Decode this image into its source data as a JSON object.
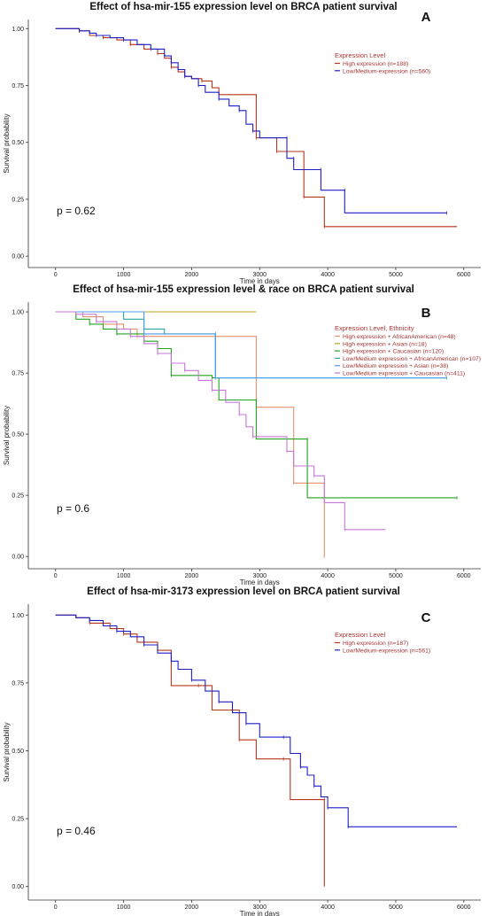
{
  "chart_data": [
    {
      "type": "line",
      "panel_letter": "A",
      "title": "Effect of hsa-mir-155 expression level on BRCA patient survival",
      "xlabel": "Time in days",
      "ylabel": "Survival probability",
      "xlim": [
        -400,
        6250
      ],
      "ylim": [
        -0.05,
        1.04
      ],
      "xticks": [
        0,
        1000,
        2000,
        3000,
        4000,
        5000,
        6000
      ],
      "yticks": [
        "0.00",
        "0.25",
        "0.50",
        "0.75",
        "1.00"
      ],
      "grid": false,
      "pvalue": "p = 0.62",
      "legend_title": "Expression Level",
      "legend_position": "top-right",
      "series": [
        {
          "name": "High expression (n=188)",
          "color": "#b5361c",
          "points": [
            [
              0,
              1.0
            ],
            [
              250,
              1.0
            ],
            [
              350,
              0.99
            ],
            [
              500,
              0.97
            ],
            [
              700,
              0.96
            ],
            [
              900,
              0.95
            ],
            [
              1100,
              0.93
            ],
            [
              1300,
              0.91
            ],
            [
              1500,
              0.89
            ],
            [
              1600,
              0.87
            ],
            [
              1700,
              0.83
            ],
            [
              1800,
              0.81
            ],
            [
              1900,
              0.79
            ],
            [
              2000,
              0.78
            ],
            [
              2150,
              0.77
            ],
            [
              2300,
              0.74
            ],
            [
              2400,
              0.71
            ],
            [
              2950,
              0.71
            ],
            [
              2950,
              0.52
            ],
            [
              3250,
              0.52
            ],
            [
              3250,
              0.46
            ],
            [
              3650,
              0.46
            ],
            [
              3650,
              0.26
            ],
            [
              3950,
              0.26
            ],
            [
              3950,
              0.13
            ],
            [
              5900,
              0.13
            ]
          ]
        },
        {
          "name": "Low/Medium-expression (n=560)",
          "color": "#1f1fc9",
          "points": [
            [
              0,
              1.0
            ],
            [
              200,
              1.0
            ],
            [
              350,
              0.99
            ],
            [
              500,
              0.98
            ],
            [
              600,
              0.97
            ],
            [
              800,
              0.96
            ],
            [
              1000,
              0.95
            ],
            [
              1200,
              0.93
            ],
            [
              1400,
              0.91
            ],
            [
              1600,
              0.88
            ],
            [
              1700,
              0.85
            ],
            [
              1800,
              0.82
            ],
            [
              1900,
              0.79
            ],
            [
              2000,
              0.78
            ],
            [
              2100,
              0.75
            ],
            [
              2200,
              0.72
            ],
            [
              2400,
              0.69
            ],
            [
              2550,
              0.66
            ],
            [
              2700,
              0.64
            ],
            [
              2800,
              0.58
            ],
            [
              2900,
              0.55
            ],
            [
              3000,
              0.52
            ],
            [
              3400,
              0.52
            ],
            [
              3400,
              0.43
            ],
            [
              3500,
              0.43
            ],
            [
              3500,
              0.38
            ],
            [
              3900,
              0.38
            ],
            [
              3900,
              0.29
            ],
            [
              4250,
              0.29
            ],
            [
              4250,
              0.19
            ],
            [
              5750,
              0.19
            ]
          ]
        }
      ]
    },
    {
      "type": "line",
      "panel_letter": "B",
      "title": "Effect of hsa-mir-155 expression level & race on BRCA patient survival",
      "xlabel": "Time in days",
      "ylabel": "Survival probability",
      "xlim": [
        -400,
        6250
      ],
      "ylim": [
        -0.05,
        1.04
      ],
      "xticks": [
        0,
        1000,
        2000,
        3000,
        4000,
        5000,
        6000
      ],
      "yticks": [
        "0.00",
        "0.25",
        "0.50",
        "0.75",
        "1.00"
      ],
      "grid": false,
      "pvalue": "p = 0.6",
      "legend_title": "Expression Level, Ethnicity",
      "legend_position": "top-right",
      "series": [
        {
          "name": "High expression + AfricanAmerican (n=48)",
          "color": "#e0916f",
          "points": [
            [
              0,
              1.0
            ],
            [
              400,
              0.98
            ],
            [
              700,
              0.95
            ],
            [
              1000,
              0.93
            ],
            [
              1200,
              0.9
            ],
            [
              2950,
              0.9
            ],
            [
              2950,
              0.61
            ],
            [
              3500,
              0.61
            ],
            [
              3500,
              0.3
            ],
            [
              3950,
              0.3
            ],
            [
              3950,
              0.0
            ]
          ]
        },
        {
          "name": "High expression + Asian (n=18)",
          "color": "#b9a01e",
          "points": [
            [
              0,
              1.0
            ],
            [
              2950,
              1.0
            ]
          ]
        },
        {
          "name": "High expression + Caucasian (n=120)",
          "color": "#22a322",
          "points": [
            [
              0,
              1.0
            ],
            [
              300,
              0.97
            ],
            [
              500,
              0.95
            ],
            [
              700,
              0.93
            ],
            [
              900,
              0.91
            ],
            [
              1100,
              0.91
            ],
            [
              1300,
              0.88
            ],
            [
              1500,
              0.85
            ],
            [
              1700,
              0.74
            ],
            [
              2000,
              0.74
            ],
            [
              2300,
              0.73
            ],
            [
              2400,
              0.64
            ],
            [
              2950,
              0.64
            ],
            [
              2950,
              0.48
            ],
            [
              3700,
              0.48
            ],
            [
              3700,
              0.24
            ],
            [
              5900,
              0.24
            ]
          ]
        },
        {
          "name": "Low/Medium expression + AfricanAmerican (n=107)",
          "color": "#2aa7a7",
          "points": [
            [
              0,
              1.0
            ],
            [
              1000,
              0.97
            ],
            [
              1300,
              0.93
            ],
            [
              1600,
              0.91
            ],
            [
              2350,
              0.91
            ],
            [
              2350,
              0.73
            ],
            [
              5750,
              0.73
            ]
          ]
        },
        {
          "name": "Low/Medium expression + Asian (n=38)",
          "color": "#4a9bf0",
          "points": [
            [
              0,
              1.0
            ],
            [
              1300,
              1.0
            ],
            [
              1300,
              0.91
            ],
            [
              2350,
              0.91
            ],
            [
              2350,
              0.73
            ],
            [
              5750,
              0.73
            ]
          ]
        },
        {
          "name": "Low/Medium expression + Caucasian (n=411)",
          "color": "#c577d6",
          "points": [
            [
              0,
              1.0
            ],
            [
              300,
              0.99
            ],
            [
              600,
              0.96
            ],
            [
              900,
              0.93
            ],
            [
              1100,
              0.9
            ],
            [
              1300,
              0.87
            ],
            [
              1500,
              0.83
            ],
            [
              1700,
              0.79
            ],
            [
              1900,
              0.76
            ],
            [
              2100,
              0.72
            ],
            [
              2300,
              0.68
            ],
            [
              2500,
              0.63
            ],
            [
              2700,
              0.58
            ],
            [
              2800,
              0.53
            ],
            [
              2900,
              0.49
            ],
            [
              3300,
              0.49
            ],
            [
              3400,
              0.43
            ],
            [
              3500,
              0.37
            ],
            [
              3800,
              0.33
            ],
            [
              3950,
              0.22
            ],
            [
              4250,
              0.11
            ],
            [
              4850,
              0.11
            ]
          ]
        }
      ]
    },
    {
      "type": "line",
      "panel_letter": "C",
      "title": "Effect of hsa-mir-3173 expression level on BRCA patient survival",
      "xlabel": "Time in days",
      "ylabel": "Survival probability",
      "xlim": [
        -400,
        6250
      ],
      "ylim": [
        -0.05,
        1.04
      ],
      "xticks": [
        0,
        1000,
        2000,
        3000,
        4000,
        5000,
        6000
      ],
      "yticks": [
        "0.00",
        "0.25",
        "0.50",
        "0.75",
        "1.00"
      ],
      "grid": false,
      "pvalue": "p = 0.46",
      "legend_title": "Expression Level",
      "legend_position": "top-right",
      "series": [
        {
          "name": "High expression (n=187)",
          "color": "#b5361c",
          "points": [
            [
              0,
              1.0
            ],
            [
              300,
              0.99
            ],
            [
              500,
              0.97
            ],
            [
              800,
              0.95
            ],
            [
              1000,
              0.93
            ],
            [
              1200,
              0.9
            ],
            [
              1500,
              0.87
            ],
            [
              1700,
              0.74
            ],
            [
              2100,
              0.74
            ],
            [
              2300,
              0.65
            ],
            [
              2700,
              0.54
            ],
            [
              2950,
              0.47
            ],
            [
              3350,
              0.47
            ],
            [
              3450,
              0.32
            ],
            [
              3950,
              0.32
            ],
            [
              3950,
              0.0
            ]
          ]
        },
        {
          "name": "Low/Medium-expression (n=561)",
          "color": "#1f1fc9",
          "points": [
            [
              0,
              1.0
            ],
            [
              300,
              0.99
            ],
            [
              500,
              0.98
            ],
            [
              700,
              0.96
            ],
            [
              900,
              0.94
            ],
            [
              1100,
              0.92
            ],
            [
              1300,
              0.89
            ],
            [
              1500,
              0.86
            ],
            [
              1700,
              0.83
            ],
            [
              1800,
              0.8
            ],
            [
              2000,
              0.76
            ],
            [
              2200,
              0.72
            ],
            [
              2400,
              0.68
            ],
            [
              2600,
              0.64
            ],
            [
              2800,
              0.6
            ],
            [
              3000,
              0.55
            ],
            [
              3350,
              0.55
            ],
            [
              3450,
              0.49
            ],
            [
              3600,
              0.44
            ],
            [
              3700,
              0.41
            ],
            [
              3800,
              0.37
            ],
            [
              3900,
              0.33
            ],
            [
              4000,
              0.29
            ],
            [
              4300,
              0.29
            ],
            [
              4300,
              0.22
            ],
            [
              5900,
              0.22
            ]
          ]
        }
      ]
    }
  ]
}
